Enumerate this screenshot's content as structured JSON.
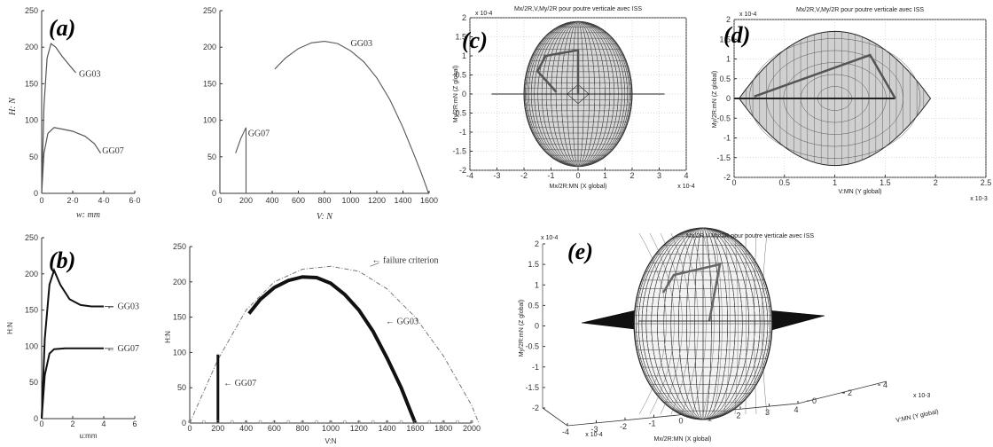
{
  "chart_data": [
    {
      "id": "a-left",
      "type": "line",
      "panel_label": "(a)",
      "xlabel": "w: mm",
      "ylabel": "H: N",
      "xlim": [
        0,
        6
      ],
      "ylim": [
        0,
        250
      ],
      "xticks": [
        "0",
        "2·0",
        "4·0",
        "6·0"
      ],
      "yticks": [
        "0",
        "50",
        "100",
        "150",
        "200",
        "250"
      ],
      "series": [
        {
          "name": "GG03",
          "x": [
            0,
            0.15,
            0.35,
            0.6,
            0.9,
            1.3,
            1.8,
            2.2
          ],
          "y": [
            0,
            120,
            185,
            205,
            200,
            188,
            175,
            165
          ]
        },
        {
          "name": "GG07",
          "x": [
            0,
            0.15,
            0.4,
            0.8,
            1.3,
            2.0,
            2.8,
            3.4,
            3.8
          ],
          "y": [
            0,
            55,
            82,
            90,
            88,
            85,
            78,
            68,
            55
          ]
        }
      ]
    },
    {
      "id": "a-right",
      "type": "line",
      "xlabel": "V: N",
      "ylabel": "",
      "xlim": [
        0,
        1600
      ],
      "ylim": [
        0,
        250
      ],
      "xticks": [
        "0",
        "200",
        "400",
        "600",
        "800",
        "1000",
        "1200",
        "1400",
        "1600"
      ],
      "yticks": [
        "0",
        "50",
        "100",
        "150",
        "200",
        "250"
      ],
      "series": [
        {
          "name": "GG03",
          "x": [
            420,
            500,
            600,
            700,
            800,
            900,
            1000,
            1100,
            1200,
            1300,
            1400,
            1480,
            1540,
            1580,
            1595
          ],
          "y": [
            170,
            185,
            198,
            206,
            208,
            205,
            195,
            180,
            158,
            128,
            90,
            55,
            28,
            8,
            0
          ]
        },
        {
          "name": "GG07",
          "x": [
            120,
            160,
            200,
            200,
            200
          ],
          "y": [
            55,
            75,
            90,
            50,
            0
          ]
        }
      ]
    },
    {
      "id": "b-left",
      "type": "line",
      "panel_label": "(b)",
      "xlabel": "u:mm",
      "ylabel": "H:N",
      "xlim": [
        0,
        6
      ],
      "ylim": [
        0,
        250
      ],
      "xticks": [
        "0",
        "2",
        "4",
        "6"
      ],
      "yticks": [
        "0",
        "50",
        "100",
        "150",
        "200",
        "250"
      ],
      "series": [
        {
          "name": "GG03",
          "x": [
            0,
            0.2,
            0.5,
            0.8,
            1.2,
            1.8,
            2.5,
            3.2,
            4.0
          ],
          "y": [
            0,
            110,
            185,
            205,
            185,
            165,
            157,
            155,
            155
          ]
        },
        {
          "name": "GG07",
          "x": [
            0,
            0.2,
            0.5,
            0.8,
            1.5,
            2.5,
            4.0
          ],
          "y": [
            0,
            60,
            90,
            96,
            97,
            97,
            97
          ]
        }
      ],
      "annotations": [
        "GG03",
        "GG07"
      ]
    },
    {
      "id": "b-right",
      "type": "line",
      "xlabel": "V:N",
      "ylabel": "H:N",
      "xlim": [
        0,
        2000
      ],
      "ylim": [
        0,
        250
      ],
      "xticks": [
        "0",
        "200",
        "400",
        "600",
        "800",
        "1000",
        "1200",
        "1400",
        "1600",
        "1800",
        "2000"
      ],
      "yticks": [
        "0",
        "50",
        "100",
        "150",
        "200",
        "250"
      ],
      "series": [
        {
          "name": "failure criterion",
          "x": [
            0,
            200,
            400,
            600,
            800,
            1000,
            1200,
            1400,
            1600,
            1800,
            2000,
            2050
          ],
          "y": [
            0,
            90,
            160,
            200,
            218,
            222,
            215,
            190,
            150,
            95,
            25,
            0
          ]
        },
        {
          "name": "GG03",
          "x": [
            420,
            500,
            600,
            700,
            800,
            900,
            1000,
            1100,
            1200,
            1300,
            1400,
            1500,
            1560,
            1600
          ],
          "y": [
            155,
            175,
            192,
            202,
            207,
            206,
            198,
            182,
            160,
            130,
            92,
            50,
            20,
            0
          ]
        },
        {
          "name": "GG07",
          "x": [
            200,
            200
          ],
          "y": [
            0,
            97
          ]
        }
      ],
      "annotations": [
        "failure criterion",
        "GG03",
        "GG07"
      ]
    },
    {
      "id": "c",
      "type": "line",
      "panel_label": "(c)",
      "title": "Mx/2R,V,My/2R pour poutre verticale avec ISS",
      "xlabel": "Mx/2R:MN (X global)",
      "ylabel": "My/2R:mN (Z global)",
      "xlim": [
        -4,
        4
      ],
      "ylim": [
        -2,
        2
      ],
      "xticks": [
        "-4",
        "-3",
        "-2",
        "-1",
        "0",
        "1",
        "2",
        "3",
        "4"
      ],
      "yticks": [
        "-2",
        "-1.5",
        "-1",
        "-0.5",
        "0",
        "0.5",
        "1",
        "1.5",
        "2"
      ],
      "x_scale_label": "x 10-4",
      "y_scale_label": "x 10-4"
    },
    {
      "id": "d",
      "type": "line",
      "panel_label": "(d)",
      "title": "Mx/2R,V,My/2R pour poutre verticale avec ISS",
      "xlabel": "V:MN (Y global)",
      "ylabel": "My/2R:mN (Z global)",
      "xlim": [
        0,
        2.5
      ],
      "ylim": [
        -2,
        2
      ],
      "xticks": [
        "0",
        "0.5",
        "1",
        "1.5",
        "2",
        "2.5"
      ],
      "yticks": [
        "-2",
        "-1.5",
        "-1",
        "-0.5",
        "0",
        "0.5",
        "1",
        "1.5",
        "2"
      ],
      "x_scale_label": "x 10-3",
      "y_scale_label": "x 10-4"
    },
    {
      "id": "e",
      "type": "line",
      "panel_label": "(e)",
      "title": "Mx/2R,V,My/2R pour poutre verticale avec ISS",
      "xlabel": "Mx/2R:MN (X global)",
      "ylabel": "My/2R:mN (Z global)",
      "zlabel": "V:MN (Y global)",
      "xticks": [
        "-4",
        "-3",
        "-2",
        "-1",
        "0",
        "1",
        "2",
        "3",
        "4"
      ],
      "yticks": [
        "-2",
        "-1.5",
        "-1",
        "-0.5",
        "0",
        "0.5",
        "1",
        "1.5",
        "2"
      ],
      "zticks": [
        "0",
        "2",
        "4"
      ],
      "x_scale_label": "x 10-4",
      "y_scale_label": "x 10-4",
      "z_scale_label": "x 10-3"
    }
  ]
}
